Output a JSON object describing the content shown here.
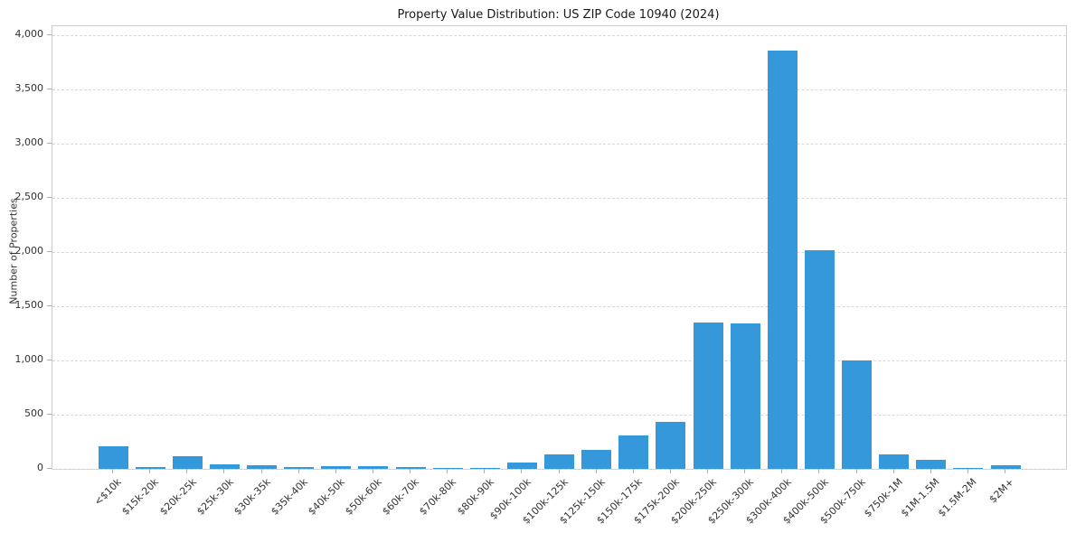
{
  "chart_data": {
    "type": "bar",
    "title": "Property Value Distribution: US ZIP Code 10940 (2024)",
    "xlabel": "",
    "ylabel": "Number of Properties",
    "categories": [
      "<$10k",
      "$15k-20k",
      "$20k-25k",
      "$25k-30k",
      "$30k-35k",
      "$35k-40k",
      "$40k-50k",
      "$50k-60k",
      "$60k-70k",
      "$70k-80k",
      "$80k-90k",
      "$90k-100k",
      "$100k-125k",
      "$125k-150k",
      "$150k-175k",
      "$175k-200k",
      "$200k-250k",
      "$250k-300k",
      "$300k-400k",
      "$400k-500k",
      "$500k-750k",
      "$750k-1M",
      "$1M-1.5M",
      "$1.5M-2M",
      "$2M+"
    ],
    "values": [
      210,
      15,
      115,
      45,
      30,
      15,
      25,
      25,
      15,
      8,
      8,
      55,
      130,
      175,
      310,
      435,
      1350,
      1345,
      3860,
      2020,
      1000,
      135,
      80,
      5,
      30
    ],
    "ylim": [
      0,
      4000
    ],
    "ytick_values": [
      0,
      500,
      1000,
      1500,
      2000,
      2500,
      3000,
      3500,
      4000
    ],
    "ytick_labels": [
      "0",
      "500",
      "1,000",
      "1,500",
      "2,000",
      "2,500",
      "3,000",
      "3,500",
      "4,000"
    ],
    "bar_color": "#3498db",
    "grid": {
      "horizontal": true,
      "style": "dashed",
      "color": "#d8d8d8"
    },
    "legend_position": "none",
    "x_tick_rotation_deg": 45
  }
}
